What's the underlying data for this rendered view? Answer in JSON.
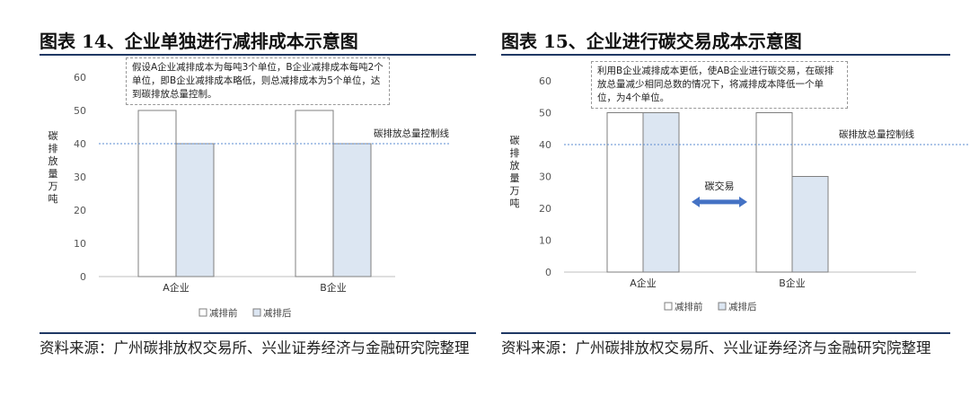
{
  "panels": [
    {
      "title": "图表 14、企业单独进行减排成本示意图",
      "note": "假设A企业减排成本为每吨3个单位，B企业减排成本每吨2个单位，即B企业减排成本略低，则总减排成本为5个单位，达到碳排放总量控制。",
      "ylabel": "碳排放量万吨",
      "source": "资料来源：广州碳排放权交易所、兴业证券经济与金融研究院整理"
    },
    {
      "title": "图表 15、企业进行碳交易成本示意图",
      "note": "利用B企业减排成本更低，使AB企业进行碳交易，在碳排放总量减少相同总数的情况下，将减排成本降低一个单位，为4个单位。",
      "ylabel": "碳排放量万吨",
      "source": "资料来源：广州碳排放权交易所、兴业证券经济与金融研究院整理"
    }
  ],
  "colors": {
    "before_fill": "#ffffff",
    "after_fill": "#dce6f2",
    "bar_stroke": "#7f7f7f",
    "control_line": "#5b8bd0",
    "arrow": "#4472c4",
    "rule": "#1f3864"
  },
  "chart_data": [
    {
      "type": "bar",
      "categories": [
        "A企业",
        "B企业"
      ],
      "series": [
        {
          "name": "减排前",
          "values": [
            50,
            50
          ]
        },
        {
          "name": "减排后",
          "values": [
            40,
            40
          ]
        }
      ],
      "ylim": [
        0,
        60
      ],
      "yticks": [
        0,
        10,
        20,
        30,
        40,
        50,
        60
      ],
      "ylabel": "碳排放量万吨",
      "control_line": {
        "value": 40,
        "label": "碳排放总量控制线"
      },
      "legend_position": "bottom",
      "grid": false
    },
    {
      "type": "bar",
      "categories": [
        "A企业",
        "B企业"
      ],
      "series": [
        {
          "name": "减排前",
          "values": [
            50,
            50
          ]
        },
        {
          "name": "减排后",
          "values": [
            50,
            30
          ]
        }
      ],
      "ylim": [
        0,
        60
      ],
      "yticks": [
        0,
        10,
        20,
        30,
        40,
        50,
        60
      ],
      "ylabel": "碳排放量万吨",
      "control_line": {
        "value": 40,
        "label": "碳排放总量控制线"
      },
      "annotation": "碳交易",
      "legend_position": "bottom",
      "grid": false
    }
  ]
}
